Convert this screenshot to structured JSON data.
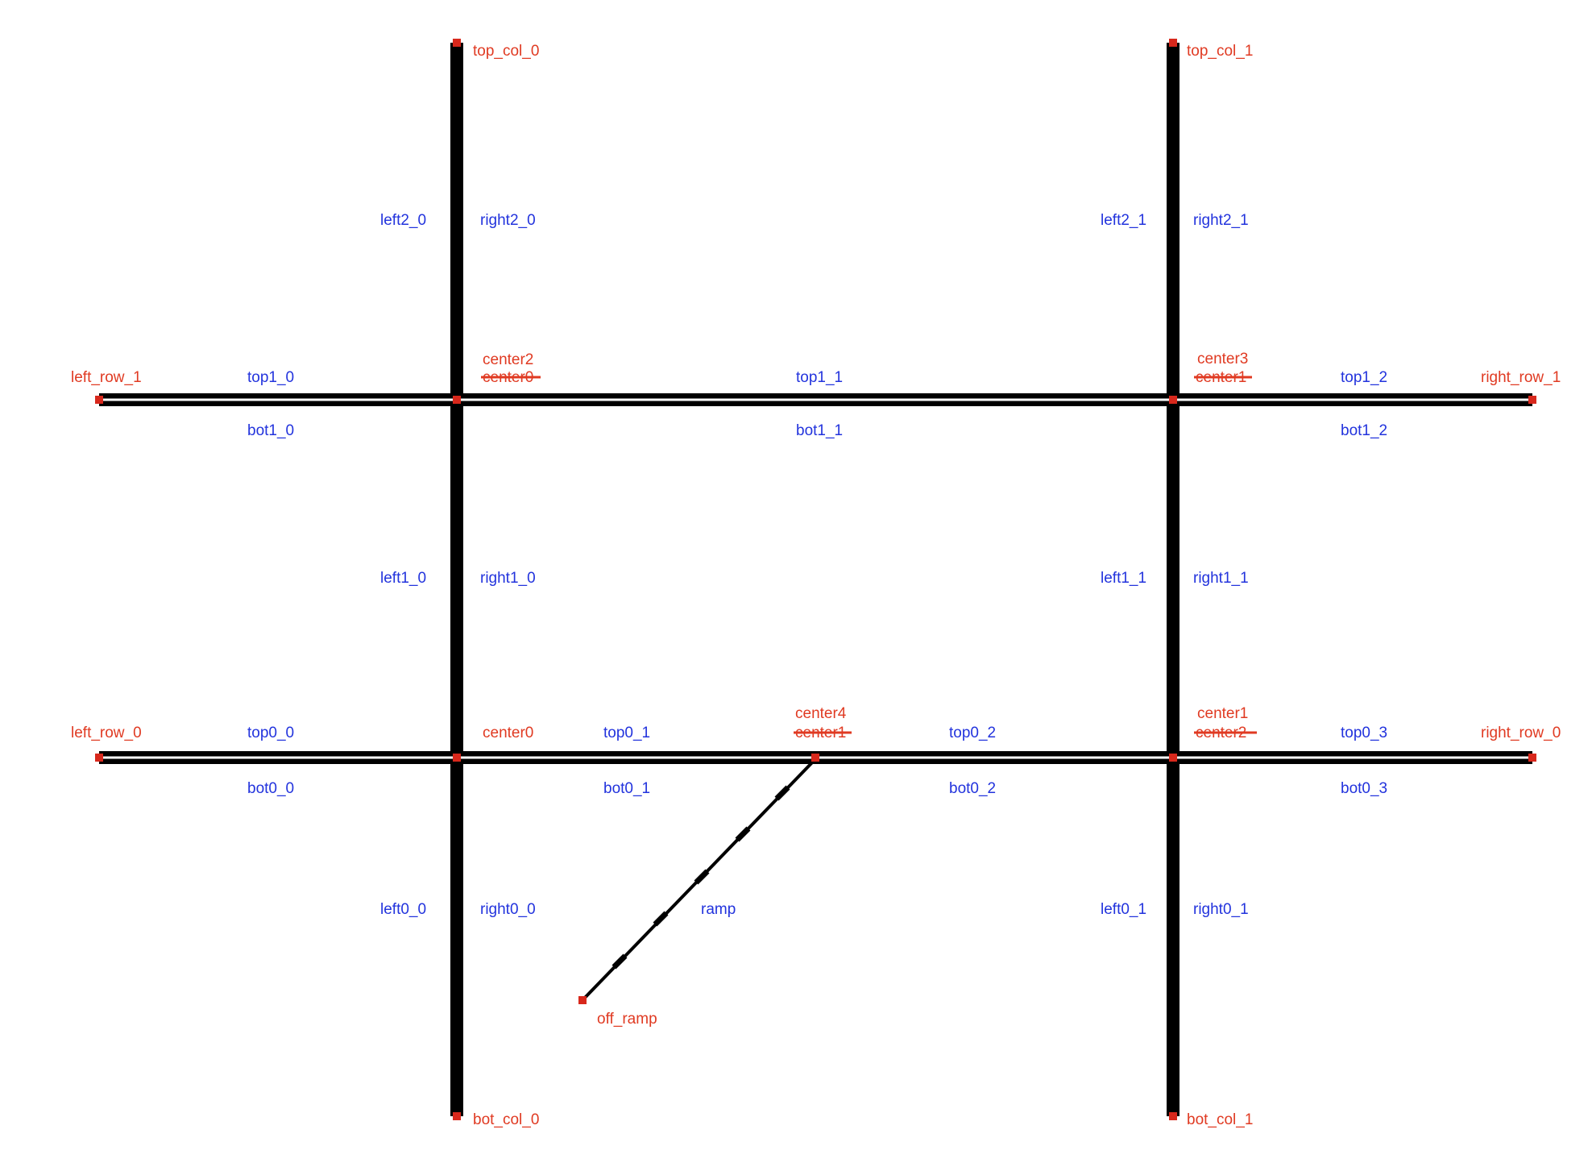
{
  "colors": {
    "road": "#000000",
    "node": "#d8281c",
    "node_label": "#e03a22",
    "edge_label": "#2233dd",
    "background": "#ffffff"
  },
  "nodes": {
    "top_col_0": "top_col_0",
    "top_col_1": "top_col_1",
    "bot_col_0": "bot_col_0",
    "bot_col_1": "bot_col_1",
    "left_row_1": "left_row_1",
    "left_row_0": "left_row_0",
    "right_row_1": "right_row_1",
    "right_row_0": "right_row_0",
    "center2_upper_left": "center2",
    "center0_struck_upper_left": "center0",
    "center3_upper_right": "center3",
    "center1_struck_upper_right": "center1",
    "center0_lower_left": "center0",
    "center4_ramp": "center4",
    "center1_struck_ramp": "center1",
    "center1_lower_right": "center1",
    "center2_struck_lower_right": "center2",
    "off_ramp": "off_ramp"
  },
  "edges": {
    "left2_0": "left2_0",
    "right2_0": "right2_0",
    "left2_1": "left2_1",
    "right2_1": "right2_1",
    "top1_0": "top1_0",
    "top1_1": "top1_1",
    "top1_2": "top1_2",
    "bot1_0": "bot1_0",
    "bot1_1": "bot1_1",
    "bot1_2": "bot1_2",
    "left1_0": "left1_0",
    "right1_0": "right1_0",
    "left1_1": "left1_1",
    "right1_1": "right1_1",
    "top0_0": "top0_0",
    "top0_1": "top0_1",
    "top0_2": "top0_2",
    "top0_3": "top0_3",
    "bot0_0": "bot0_0",
    "bot0_1": "bot0_1",
    "bot0_2": "bot0_2",
    "bot0_3": "bot0_3",
    "left0_0": "left0_0",
    "right0_0": "right0_0",
    "left0_1": "left0_1",
    "right0_1": "right0_1",
    "ramp": "ramp"
  }
}
